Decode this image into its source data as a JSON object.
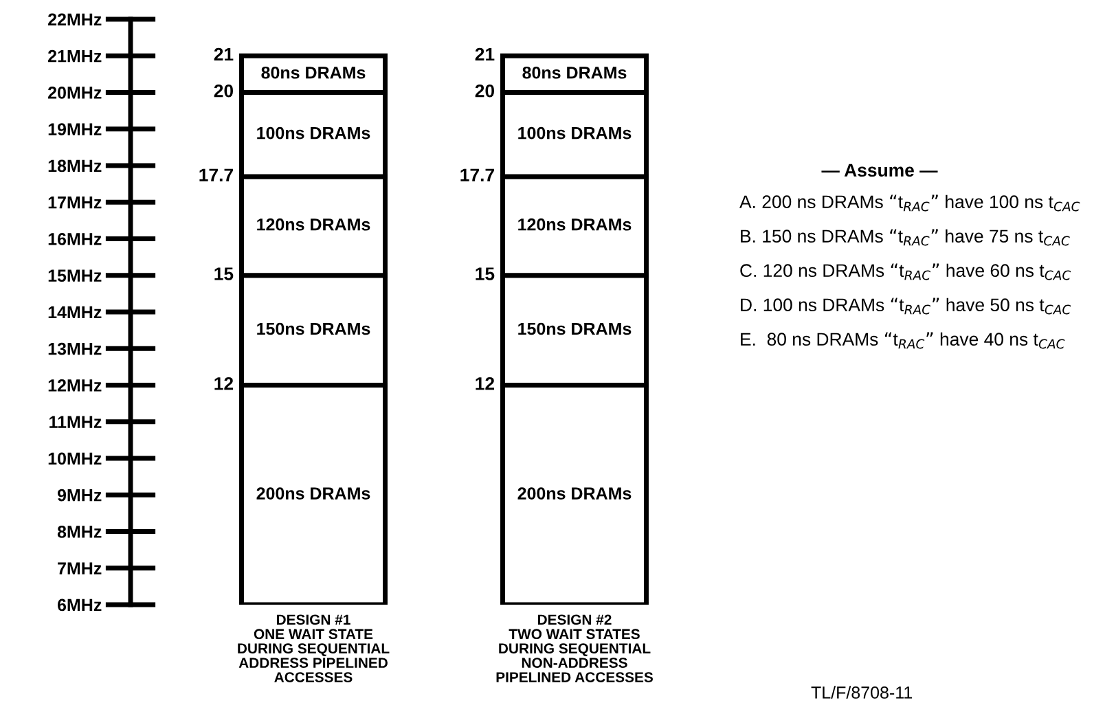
{
  "chart_data": {
    "type": "bar",
    "categories": [
      "DESIGN #1\nONE WAIT STATE\nDURING SEQUENTIAL\nADDRESS PIPELINED\nACCESSES",
      "DESIGN #2\nTWO WAIT STATES\nDURING SEQUENTIAL\nNON-ADDRESS\nPIPELINED ACCESSES"
    ],
    "series": [
      {
        "name": "200ns DRAMs",
        "color": "#ffffff",
        "base": [
          6,
          6
        ],
        "values": [
          6,
          6
        ]
      },
      {
        "name": "150ns DRAMs",
        "color": "#ffffff",
        "base": [
          12,
          12
        ],
        "values": [
          3,
          3
        ]
      },
      {
        "name": "120ns DRAMs",
        "color": "#ffffff",
        "base": [
          15,
          15
        ],
        "values": [
          2.7,
          2.7
        ]
      },
      {
        "name": "100ns DRAMs",
        "color": "#ffffff",
        "base": [
          17.7,
          17.7
        ],
        "values": [
          2.3,
          2.3
        ]
      },
      {
        "name": "80ns DRAMs",
        "color": "#ffffff",
        "base": [
          20,
          20
        ],
        "values": [
          1,
          1
        ]
      }
    ],
    "ylim": [
      6,
      22
    ],
    "yticks": [
      {
        "value": 6,
        "label": "6MHz"
      },
      {
        "value": 7,
        "label": "7MHz"
      },
      {
        "value": 8,
        "label": "8MHz"
      },
      {
        "value": 9,
        "label": "9MHz"
      },
      {
        "value": 10,
        "label": "10MHz"
      },
      {
        "value": 11,
        "label": "11MHz"
      },
      {
        "value": 12,
        "label": "12MHz"
      },
      {
        "value": 13,
        "label": "13MHz"
      },
      {
        "value": 14,
        "label": "14MHz"
      },
      {
        "value": 15,
        "label": "15MHz"
      },
      {
        "value": 16,
        "label": "16MHz"
      },
      {
        "value": 17,
        "label": "17MHz"
      },
      {
        "value": 18,
        "label": "18MHz"
      },
      {
        "value": 19,
        "label": "19MHz"
      },
      {
        "value": 20,
        "label": "20MHz"
      },
      {
        "value": 21,
        "label": "21MHz"
      },
      {
        "value": 22,
        "label": "22MHz"
      }
    ],
    "grid": false,
    "legend": false,
    "annotations": [
      "12",
      "15",
      "17.7",
      "20",
      "21",
      "12",
      "15",
      "17.7",
      "20",
      "21",
      "— Assume —",
      "A. 200 ns DRAMs “t$_{RAC}$” have 100 ns t$_{CAC}$",
      "B. 150 ns DRAMs “t$_{RAC}$” have 75 ns t$_{CAC}$",
      "C. 120 ns DRAMs “t$_{RAC}$” have 60 ns t$_{CAC}$",
      "D. 100 ns DRAMs “t$_{RAC}$” have 50 ns t$_{CAC}$",
      "E.  80 ns DRAMs “t$_{RAC}$” have 40 ns t$_{CAC}$",
      "TL/F/8708-11"
    ]
  }
}
